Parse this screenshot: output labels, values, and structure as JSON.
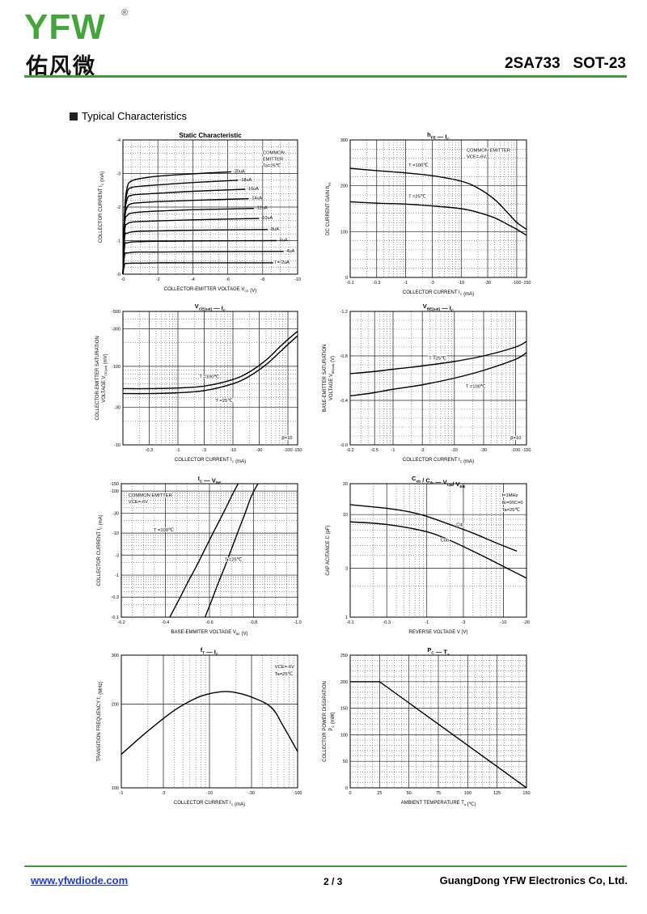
{
  "header": {
    "logo_text": "YFW",
    "logo_registered": "®",
    "logo_chinese": "佑风微",
    "part_title": "2SA733   SOT-23"
  },
  "section_title": "Typical Characteristics",
  "footer": {
    "url": "www.yfwdiode.com",
    "page": "2 / 3",
    "company": "GuangDong YFW Electronics Co, Ltd."
  },
  "colors": {
    "rule_green": "#3e9b3e",
    "link_blue": "#1f3fc0",
    "logo_green": "#44a63a"
  },
  "chart_data": [
    {
      "id": "static",
      "type": "line",
      "title": "Static Characteristic",
      "xlabel": "COLLECTOR-EMITTER VOLTAGE   V",
      "xlabel_sub": "CE",
      "xlabel_unit": "(V)",
      "ylabel": "COLLECTOR CURRENT   I",
      "ylabel_sub": "C",
      "ylabel_unit": "(mA)",
      "xscale": "linear",
      "yscale": "linear",
      "xlim": [
        0,
        -10
      ],
      "ylim": [
        0,
        -4
      ],
      "xticks": [
        0,
        -2,
        -4,
        -6,
        -8,
        -10
      ],
      "xtick_labels": [
        "-0",
        "-2",
        "-4",
        "-6",
        "-8",
        "-10"
      ],
      "yticks": [
        0,
        -1,
        -2,
        -3,
        -4
      ],
      "ytick_labels": [
        "-0",
        "-1",
        "-2",
        "-3",
        "-4"
      ],
      "notes": [
        "COMMON",
        "EMITTER",
        "Ta=25℃"
      ],
      "series": [
        {
          "name": "-20uA",
          "label": "-20uA",
          "x": [
            0,
            -0.1,
            -0.25,
            -0.5,
            -1,
            -2,
            -4,
            -6.2
          ],
          "y": [
            0,
            -1.9,
            -2.6,
            -2.78,
            -2.85,
            -2.92,
            -2.99,
            -3.05
          ]
        },
        {
          "name": "-18uA",
          "label": "-18uA",
          "x": [
            0,
            -0.1,
            -0.25,
            -0.5,
            -1,
            -2,
            -4,
            -6.6
          ],
          "y": [
            0,
            -1.8,
            -2.45,
            -2.58,
            -2.62,
            -2.66,
            -2.73,
            -2.8
          ]
        },
        {
          "name": "-16uA",
          "label": "-16uA",
          "x": [
            0,
            -0.1,
            -0.25,
            -0.5,
            -1,
            -2,
            -4,
            -7.0
          ],
          "y": [
            0,
            -1.7,
            -2.25,
            -2.35,
            -2.38,
            -2.41,
            -2.47,
            -2.53
          ]
        },
        {
          "name": "-14uA",
          "label": "-14uA",
          "x": [
            0,
            -0.1,
            -0.25,
            -0.5,
            -1,
            -2,
            -4,
            -7.2
          ],
          "y": [
            0,
            -1.6,
            -2.0,
            -2.1,
            -2.13,
            -2.16,
            -2.2,
            -2.25
          ]
        },
        {
          "name": "-12uA",
          "label": "-12uA",
          "x": [
            0,
            -0.1,
            -0.25,
            -0.5,
            -1,
            -2,
            -4,
            -7.5
          ],
          "y": [
            0,
            -1.5,
            -1.75,
            -1.82,
            -1.85,
            -1.88,
            -1.92,
            -1.96
          ]
        },
        {
          "name": "-10uA",
          "label": "-10uA",
          "x": [
            0,
            -0.1,
            -0.25,
            -0.5,
            -1,
            -2,
            -4,
            -7.8
          ],
          "y": [
            0,
            -1.3,
            -1.5,
            -1.55,
            -1.57,
            -1.59,
            -1.62,
            -1.66
          ]
        },
        {
          "name": "-8uA",
          "label": "-8uA",
          "x": [
            0,
            -0.1,
            -0.25,
            -0.5,
            -1,
            -2,
            -4,
            -8.3
          ],
          "y": [
            0,
            -1.1,
            -1.22,
            -1.26,
            -1.28,
            -1.29,
            -1.31,
            -1.33
          ]
        },
        {
          "name": "-6uA",
          "label": "-6uA",
          "x": [
            0,
            -0.1,
            -0.25,
            -0.5,
            -1,
            -2,
            -4,
            -8.8
          ],
          "y": [
            0,
            -0.85,
            -0.93,
            -0.96,
            -0.97,
            -0.98,
            -0.99,
            -1.0
          ]
        },
        {
          "name": "-4uA",
          "label": "-4uA",
          "x": [
            0,
            -0.1,
            -0.25,
            -0.5,
            -1,
            -2,
            -4,
            -9.2
          ],
          "y": [
            0,
            -0.58,
            -0.63,
            -0.65,
            -0.66,
            -0.66,
            -0.67,
            -0.68
          ]
        },
        {
          "name": "IB=-2uA",
          "label": "I  =-2uA",
          "x": [
            0,
            -0.1,
            -0.25,
            -0.5,
            -1,
            -2,
            -4,
            -8.6
          ],
          "y": [
            0,
            -0.3,
            -0.32,
            -0.33,
            -0.33,
            -0.34,
            -0.34,
            -0.34
          ]
        }
      ]
    },
    {
      "id": "hfe",
      "type": "line",
      "title_main": "h",
      "title_sub": "FE",
      "title_dash": "—",
      "title_main2": "I",
      "title_sub2": "C",
      "xlabel": "COLLECTOR CURRENT   I",
      "xlabel_sub": "C",
      "xlabel_unit": "(mA)",
      "ylabel": "DC CURRENT GAIN   h",
      "ylabel_sub": "FE",
      "xscale": "log",
      "yscale": "linear",
      "xlim": [
        -0.1,
        -150
      ],
      "ylim": [
        0,
        300
      ],
      "xticks": [
        -0.1,
        -0.3,
        -1,
        -3,
        -10,
        -30,
        -100,
        -150
      ],
      "xtick_labels": [
        "-0.1",
        "-0.3",
        "-1",
        "-3",
        "-10",
        "-30",
        "-100",
        "-150"
      ],
      "yticks": [
        0,
        100,
        200,
        300
      ],
      "ytick_labels": [
        "0",
        "100",
        "200",
        "300"
      ],
      "notes": [
        "COMMON EMITTER",
        "VCE=-6V"
      ],
      "series": [
        {
          "name": "Ta=100℃",
          "label": "T =100℃",
          "x": [
            -0.1,
            -0.3,
            -1,
            -3,
            -10,
            -20,
            -40,
            -70,
            -100,
            -150
          ],
          "y": [
            238,
            233,
            228,
            222,
            210,
            195,
            170,
            140,
            120,
            105
          ]
        },
        {
          "name": "Ta=25℃",
          "label": "T =25℃",
          "x": [
            -0.1,
            -0.3,
            -1,
            -3,
            -10,
            -20,
            -40,
            -70,
            -100,
            -150
          ],
          "y": [
            165,
            162,
            160,
            156,
            150,
            142,
            130,
            115,
            105,
            92
          ]
        }
      ]
    },
    {
      "id": "vcesat",
      "type": "line",
      "title_main": "V",
      "title_sub": "CE(sat)",
      "title_dash": "—",
      "title_main2": "I",
      "title_sub2": "C",
      "xlabel": "COLLECTOR CURRENT   I",
      "xlabel_sub": "C",
      "xlabel_unit": "(mA)",
      "ylabel": "COLLECTOR-EMITTER SATURATION VOLTAGE   V",
      "ylabel_line1": "COLLECTOR-EMITTER SATURATION",
      "ylabel_line2": "VOLTAGE   V",
      "ylabel_sub": "CE(sat)",
      "ylabel_unit": "(mV)",
      "xscale": "log",
      "yscale": "log",
      "xlim": [
        -0.1,
        -150
      ],
      "ylim": [
        -10,
        -500
      ],
      "xticks": [
        -0.3,
        -1,
        -3,
        -10,
        -30,
        -100,
        -150
      ],
      "xtick_labels": [
        "-0.3",
        "-1",
        "-3",
        "-10",
        "-30",
        "-100",
        "-150"
      ],
      "yticks": [
        -10,
        -30,
        -100,
        -300,
        -500
      ],
      "ytick_labels": [
        "-10",
        "-30",
        "-100",
        "-300",
        "-500"
      ],
      "notes": [
        "β=10"
      ],
      "series": [
        {
          "name": "Ta=100℃",
          "label": "T =100℃",
          "x": [
            -0.1,
            -0.3,
            -1,
            -3,
            -10,
            -20,
            -40,
            -70,
            -100,
            -150
          ],
          "y": [
            -52,
            -52,
            -53,
            -56,
            -68,
            -85,
            -120,
            -175,
            -220,
            -280
          ]
        },
        {
          "name": "Ta=25℃",
          "label": "T =25℃",
          "x": [
            -0.1,
            -0.3,
            -1,
            -3,
            -10,
            -20,
            -40,
            -70,
            -100,
            -150
          ],
          "y": [
            -45,
            -45,
            -46,
            -49,
            -60,
            -75,
            -105,
            -150,
            -190,
            -245
          ]
        }
      ]
    },
    {
      "id": "vbesat",
      "type": "line",
      "title_main": "V",
      "title_sub": "BE(sat)",
      "title_dash": "—",
      "title_main2": "I",
      "title_sub2": "C",
      "xlabel": "COLLECTOR CURRENT   I",
      "xlabel_sub": "C",
      "xlabel_unit": "(mA)",
      "ylabel": "BASE-EMITTER SATURATION VOLTAGE   V",
      "ylabel_line1": "BASE-EMITTER SATURATION",
      "ylabel_line2": "VOLTAGE   V",
      "ylabel_sub": "BE(sat)",
      "ylabel_unit": "(V)",
      "xscale": "log",
      "yscale": "linear",
      "xlim": [
        -0.2,
        -150
      ],
      "ylim": [
        0,
        -1.2
      ],
      "xticks": [
        -0.2,
        -0.5,
        -1,
        -3,
        -10,
        -30,
        -100,
        -150
      ],
      "xtick_labels": [
        "-0.2",
        "-0.5",
        "-1",
        "-3",
        "-10",
        "-30",
        "-100",
        "-150"
      ],
      "yticks": [
        0,
        -0.4,
        -0.8,
        -1.2
      ],
      "ytick_labels": [
        "-0.0",
        "-0.4",
        "-0.8",
        "-1.2"
      ],
      "notes": [
        "β=10"
      ],
      "series": [
        {
          "name": "Ta=25℃",
          "label": "T =25℃",
          "x": [
            -0.2,
            -0.5,
            -1,
            -3,
            -10,
            -30,
            -100,
            -150
          ],
          "y": [
            -0.64,
            -0.66,
            -0.68,
            -0.71,
            -0.75,
            -0.8,
            -0.88,
            -0.93
          ]
        },
        {
          "name": "Ta=100℃",
          "label": "T =100℃",
          "x": [
            -0.2,
            -0.5,
            -1,
            -3,
            -10,
            -30,
            -100,
            -150
          ],
          "y": [
            -0.44,
            -0.47,
            -0.5,
            -0.54,
            -0.6,
            -0.67,
            -0.77,
            -0.83
          ]
        }
      ]
    },
    {
      "id": "icvbe",
      "type": "line",
      "title_main": "I",
      "title_sub": "C",
      "title_dash": "—",
      "title_main2": "V",
      "title_sub2": "BE",
      "xlabel": "BASE-EMMITER VOLTAGE   V",
      "xlabel_sub": "BE",
      "xlabel_unit": "(V)",
      "ylabel": "COLLECTOR CURRENT   I",
      "ylabel_sub": "C",
      "ylabel_unit": "(mA)",
      "xscale": "linear",
      "yscale": "log",
      "xlim": [
        -0.2,
        -1.0
      ],
      "ylim": [
        -0.1,
        -150
      ],
      "xticks": [
        -0.2,
        -0.4,
        -0.6,
        -0.8,
        -1.0
      ],
      "xtick_labels": [
        "-0.2",
        "-0.4",
        "-0.6",
        "-0.8",
        "-1.0"
      ],
      "yticks": [
        -0.1,
        -0.3,
        -1,
        -3,
        -10,
        -30,
        -100,
        -150
      ],
      "ytick_labels": [
        "-0.1",
        "-0.3",
        "-1",
        "-3",
        "-10",
        "-30",
        "-100",
        "-150"
      ],
      "notes": [
        "COMMON EMITTER",
        "VCE=-6V"
      ],
      "series": [
        {
          "name": "Ta=100℃",
          "label": "T =100℃",
          "x": [
            -0.42,
            -0.46,
            -0.5,
            -0.54,
            -0.58,
            -0.62,
            -0.66,
            -0.7,
            -0.73
          ],
          "y": [
            -0.1,
            -0.25,
            -0.65,
            -1.6,
            -4.2,
            -11,
            -28,
            -75,
            -150
          ]
        },
        {
          "name": "Ta=25℃",
          "label": "T =25℃",
          "x": [
            -0.58,
            -0.61,
            -0.64,
            -0.67,
            -0.7,
            -0.73,
            -0.76,
            -0.79,
            -0.82
          ],
          "y": [
            -0.1,
            -0.25,
            -0.65,
            -1.6,
            -4.2,
            -11,
            -28,
            -75,
            -150
          ]
        }
      ]
    },
    {
      "id": "cap",
      "type": "line",
      "title_main": "C",
      "title_sub": "ob",
      "title_main_b": " / C",
      "title_sub_b": "ib",
      "title_dash": "—",
      "title_main2": "V",
      "title_sub2": "CB",
      "title_main2_b": "/ V",
      "title_sub2_b": "EB",
      "xlabel": "REVERSE VOLTAGE   V",
      "xlabel_unit": "(V)",
      "ylabel": "CAP ACITANCE   C",
      "ylabel_unit": "(pF)",
      "xscale": "log",
      "yscale": "log",
      "xlim": [
        -0.1,
        -20
      ],
      "ylim": [
        1,
        20
      ],
      "xticks": [
        -0.1,
        -0.3,
        -1,
        -3,
        -10,
        -20
      ],
      "xtick_labels": [
        "-0.1",
        "-0.3",
        "-1",
        "-3",
        "-10",
        "-20"
      ],
      "yticks": [
        1,
        3,
        10,
        20
      ],
      "ytick_labels": [
        "1",
        "3",
        "10",
        "20"
      ],
      "notes": [
        "f=1MHz",
        "IE=0/IC=0",
        "Ta=25℃"
      ],
      "series": [
        {
          "name": "Cib",
          "label": "Cib",
          "x": [
            -0.1,
            -0.3,
            -0.6,
            -1,
            -2,
            -4,
            -8,
            -15
          ],
          "y": [
            12.5,
            11.5,
            10.6,
            9.6,
            8.0,
            6.6,
            5.3,
            4.4
          ]
        },
        {
          "name": "Cob",
          "label": "Cob",
          "x": [
            -0.1,
            -0.3,
            -1,
            -2,
            -4,
            -8,
            -20
          ],
          "y": [
            8.5,
            8.0,
            6.8,
            5.6,
            4.4,
            3.4,
            2.4
          ]
        }
      ]
    },
    {
      "id": "ft",
      "type": "line",
      "title_main": "f",
      "title_sub": "T",
      "title_dash": "—",
      "title_main2": "I",
      "title_sub2": "C",
      "xlabel": "COLLECTOR CURRENT   I",
      "xlabel_sub": "C",
      "xlabel_unit": "(mA)",
      "ylabel": "TRANSITION FREQUENCY   f",
      "ylabel_sub": "T",
      "ylabel_unit": "(MHz)",
      "xscale": "log",
      "yscale": "log",
      "xlim": [
        -1,
        -100
      ],
      "ylim": [
        100,
        300
      ],
      "xticks": [
        -1,
        -3,
        -10,
        -30,
        -100
      ],
      "xtick_labels": [
        "-1",
        "-3",
        "-10",
        "-30",
        "-100"
      ],
      "yticks": [
        100,
        200,
        300
      ],
      "ytick_labels": [
        "100",
        "200",
        "300"
      ],
      "notes": [
        "VCE=-6V",
        "Ta=25℃"
      ],
      "series": [
        {
          "name": "fT",
          "label": "",
          "x": [
            -1,
            -2,
            -4,
            -7,
            -10,
            -15,
            -20,
            -30,
            -50,
            -70,
            -100
          ],
          "y": [
            132,
            160,
            190,
            210,
            218,
            222,
            220,
            212,
            195,
            165,
            135
          ]
        }
      ]
    },
    {
      "id": "pd",
      "type": "line",
      "title_main": "P",
      "title_sub": "C",
      "title_dash": "—",
      "title_main2": "T",
      "title_sub2": "a",
      "xlabel": "AMBIENT TEMPERATURE   T",
      "xlabel_sub": "a",
      "xlabel_unit": "(℃)",
      "ylabel": "COLLECTOR POWER DISSIPATION   P",
      "ylabel_line1": "COLLECTOR POWER DISSIPATION",
      "ylabel_line2": "P",
      "ylabel_sub": "C",
      "ylabel_unit": "(mW)",
      "xscale": "linear",
      "yscale": "linear",
      "xlim": [
        0,
        150
      ],
      "ylim": [
        0,
        250
      ],
      "xticks": [
        0,
        25,
        50,
        75,
        100,
        125,
        150
      ],
      "xtick_labels": [
        "0",
        "25",
        "50",
        "75",
        "100",
        "125",
        "150"
      ],
      "yticks": [
        0,
        50,
        100,
        150,
        200,
        250
      ],
      "ytick_labels": [
        "0",
        "50",
        "100",
        "150",
        "200",
        "250"
      ],
      "notes": [],
      "series": [
        {
          "name": "PC",
          "label": "",
          "x": [
            0,
            25,
            150
          ],
          "y": [
            200,
            200,
            0
          ]
        }
      ]
    }
  ]
}
